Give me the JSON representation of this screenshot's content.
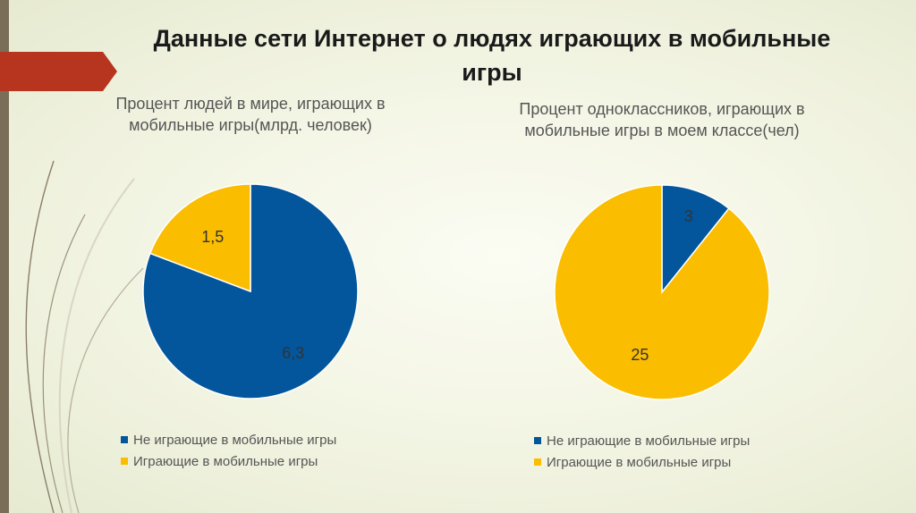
{
  "slide": {
    "title": "Данные сети Интернет о людях играющих в мобильные игры"
  },
  "colors": {
    "blue": "#03569C",
    "yellow": "#FBBD00"
  },
  "chart_data": [
    {
      "type": "pie",
      "title": "Процент людей в мире, играющих в мобильные игры(млрд. человек)",
      "categories": [
        "Не играющие в мобильные игры",
        "Играющие в мобильные игры"
      ],
      "values": [
        6.3,
        1.5
      ],
      "data_labels": [
        "6,3",
        "1,5"
      ],
      "colors": [
        "#03569C",
        "#FBBD00"
      ],
      "legend": "bottom"
    },
    {
      "type": "pie",
      "title": "Процент одноклассников, играющих в мобильные игры в моем классе(чел)",
      "categories": [
        "Не играющие в мобильные игры",
        "Играющие в мобильные игры"
      ],
      "values": [
        3,
        25
      ],
      "data_labels": [
        "3",
        "25"
      ],
      "colors": [
        "#03569C",
        "#FBBD00"
      ],
      "legend": "bottom"
    }
  ]
}
